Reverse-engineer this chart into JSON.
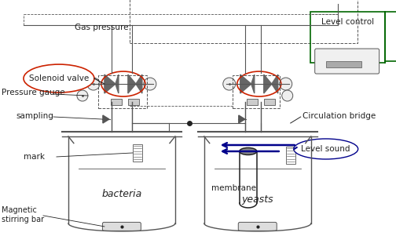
{
  "bg_color": "#ffffff",
  "line_color": "#555555",
  "dark_color": "#222222",
  "red_color": "#cc2200",
  "blue_color": "#00008b",
  "green_color": "#006600",
  "labels": {
    "gas_pressure": "Gas pressure",
    "solenoid_valve": "Solenoid valve",
    "pressure_gauge": "Pressure gauge",
    "sampling": "sampling",
    "mark": "mark",
    "bacteria": "bacteria",
    "magnetic_stirring_bar": "Magnetic\nstirring bar",
    "level_control": "Level control",
    "circulation_bridge": "Circulation bridge",
    "level_sound": "Level sound",
    "membrane": "membrane",
    "yeasts": "yeasts"
  },
  "xlim": [
    0,
    504
  ],
  "ylim": [
    0,
    315
  ]
}
